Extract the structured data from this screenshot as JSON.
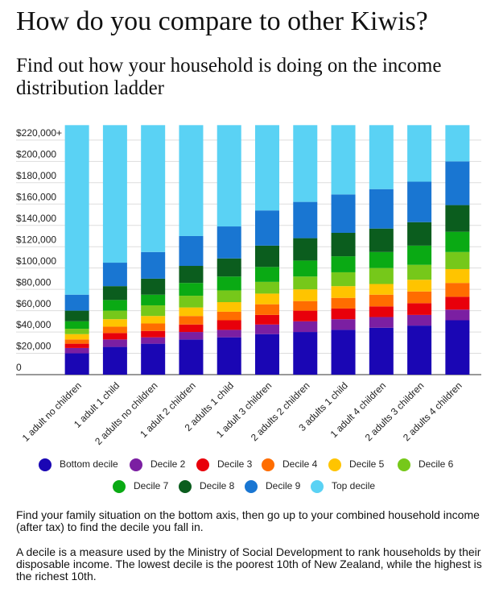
{
  "chart_data": {
    "type": "stacked_bar",
    "title": "How do you compare to other Kiwis?",
    "subtitle": "Find out how your household is doing on the income distribution ladder",
    "categories": [
      "1 adult no children",
      "1 adult 1 child",
      "2 adults no children",
      "1 adult 2 children",
      "2 adults 1 child",
      "1 adult 3 children",
      "2 adults 2 children",
      "3 adults 1 child",
      "1 adult 4 children",
      "2 adults 3 children",
      "2 adults 4 children"
    ],
    "series": [
      {
        "name": "Bottom decile",
        "color": "#1a06b4",
        "values": [
          20000,
          26000,
          29000,
          33000,
          35000,
          38000,
          40000,
          42000,
          44000,
          46000,
          51000
        ]
      },
      {
        "name": "Decile 2",
        "color": "#7b1fa2",
        "values": [
          5000,
          7000,
          6000,
          7000,
          7000,
          9000,
          10000,
          10000,
          10000,
          10000,
          10000
        ]
      },
      {
        "name": "Decile 3",
        "color": "#e8000b",
        "values": [
          4000,
          6000,
          6000,
          7000,
          9000,
          9000,
          10000,
          10000,
          10000,
          11000,
          12000
        ]
      },
      {
        "name": "Decile 4",
        "color": "#ff6d00",
        "values": [
          4000,
          6000,
          7000,
          8000,
          8000,
          10000,
          9000,
          10000,
          11000,
          11000,
          13000
        ]
      },
      {
        "name": "Decile 5",
        "color": "#ffc400",
        "values": [
          5000,
          7000,
          7000,
          8000,
          9000,
          10000,
          11000,
          11000,
          10000,
          11000,
          13000
        ]
      },
      {
        "name": "Decile 6",
        "color": "#76c81a",
        "values": [
          5000,
          8000,
          10000,
          11000,
          11000,
          11000,
          12000,
          13000,
          15000,
          14000,
          16000
        ]
      },
      {
        "name": "Decile 7",
        "color": "#0aaa14",
        "values": [
          7000,
          10000,
          10000,
          12000,
          13000,
          14000,
          15000,
          15000,
          15000,
          18000,
          19000
        ]
      },
      {
        "name": "Decile 8",
        "color": "#0b5d1e",
        "values": [
          10000,
          13000,
          15000,
          16000,
          17000,
          20000,
          21000,
          22000,
          22000,
          22000,
          25000
        ]
      },
      {
        "name": "Decile 9",
        "color": "#1976d2",
        "values": [
          15000,
          22000,
          25000,
          28000,
          30000,
          33000,
          34000,
          36000,
          37000,
          38000,
          41000
        ]
      },
      {
        "name": "Top decile",
        "color": "#5ad2f4",
        "values": [
          159000,
          129000,
          119000,
          104000,
          95000,
          80000,
          72000,
          65000,
          60000,
          53000,
          34000
        ]
      }
    ],
    "ylim": [
      0,
      235000
    ],
    "yticks": [
      0,
      {
        "value": 20000,
        "label": "$20,000"
      },
      {
        "value": 40000,
        "label": "$40,000"
      },
      {
        "value": 60000,
        "label": "$60,000"
      },
      {
        "value": 80000,
        "label": "$80,000"
      },
      {
        "value": 100000,
        "label": "$100,000"
      },
      {
        "value": 120000,
        "label": "$120,000"
      },
      {
        "value": 140000,
        "label": "$140,000"
      },
      {
        "value": 160000,
        "label": "$160,000"
      },
      {
        "value": 180000,
        "label": "$180,000"
      },
      {
        "value": 200000,
        "label": "$200,000"
      },
      {
        "value": 220000,
        "label": "$220,000+"
      }
    ],
    "grid": true,
    "notes": [
      "Find your family situation on the bottom axis, then go up to your combined household income (after tax) to find the decile you fall in.",
      "A decile is a measure used by the Ministry of Social Development to rank households by their disposable income.  The lowest decile is the poorest 10th of New Zealand, while the highest is the richest 10th."
    ]
  }
}
